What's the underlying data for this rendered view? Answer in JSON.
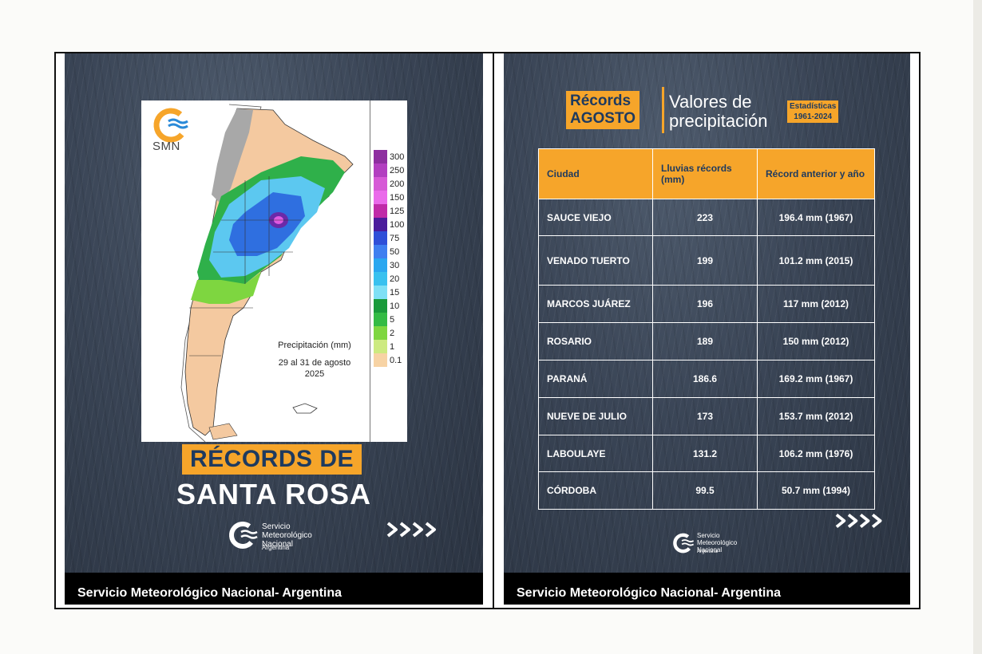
{
  "left_panel": {
    "map": {
      "logo_text": "SMN",
      "caption_line1": "Precipitación (mm)",
      "caption_line2": "29 al 31 de agosto",
      "caption_line3": "2025",
      "scale": [
        {
          "label": "300",
          "color": "#8e2fa0"
        },
        {
          "label": "250",
          "color": "#b23fc0"
        },
        {
          "label": "200",
          "color": "#d65ad6"
        },
        {
          "label": "150",
          "color": "#ea6aea"
        },
        {
          "label": "125",
          "color": "#c02ba8"
        },
        {
          "label": "100",
          "color": "#4b1c9c"
        },
        {
          "label": "75",
          "color": "#2f4fd8"
        },
        {
          "label": "50",
          "color": "#3f7ff0"
        },
        {
          "label": "30",
          "color": "#2aa7f0"
        },
        {
          "label": "20",
          "color": "#39c1ef"
        },
        {
          "label": "15",
          "color": "#7fe0f5"
        },
        {
          "label": "10",
          "color": "#1a9a3a"
        },
        {
          "label": "5",
          "color": "#33bb44"
        },
        {
          "label": "2",
          "color": "#7ed640"
        },
        {
          "label": "1",
          "color": "#cdea80"
        },
        {
          "label": "0.1",
          "color": "#f7d3a4"
        }
      ]
    },
    "title_line1": "RÉCORDS DE",
    "title_line2": "SANTA ROSA",
    "org_name": "Servicio Meteorológico Nacional",
    "org_country": "Argentina"
  },
  "right_panel": {
    "title_highlight_line1": "Récords",
    "title_highlight_line2": "AGOSTO",
    "title_line1": "Valores de",
    "title_line2": "precipitación",
    "stats_line1": "Estadísticas",
    "stats_line2": "1961-2024",
    "table": {
      "headers": [
        "Ciudad",
        "Lluvias récords (mm)",
        "Récord anterior y año"
      ],
      "rows": [
        [
          "SAUCE VIEJO",
          "223",
          "196.4 mm (1967)"
        ],
        [
          "VENADO TUERTO",
          "199",
          "101.2 mm (2015)"
        ],
        [
          "MARCOS JUÁREZ",
          "196",
          "117 mm (2012)"
        ],
        [
          "ROSARIO",
          "189",
          "150 mm (2012)"
        ],
        [
          "PARANÁ",
          "186.6",
          "169.2 mm (1967)"
        ],
        [
          "NUEVE DE JULIO",
          "173",
          "153.7 mm (2012)"
        ],
        [
          "LABOULAYE",
          "131.2",
          "106.2 mm (1976)"
        ],
        [
          "CÓRDOBA",
          "99.5",
          "50.7 mm (1994)"
        ]
      ]
    },
    "org_name": "Servicio Meteorológico Nacional",
    "org_country": "Argentina"
  },
  "captions": {
    "left": "Servicio Meteorológico Nacional- Argentina",
    "right": "Servicio Meteorológico Nacional- Argentina"
  },
  "colors": {
    "accent": "#f6a52a",
    "title_text": "#1e3a5f",
    "panel_bg": "#3a4556"
  }
}
